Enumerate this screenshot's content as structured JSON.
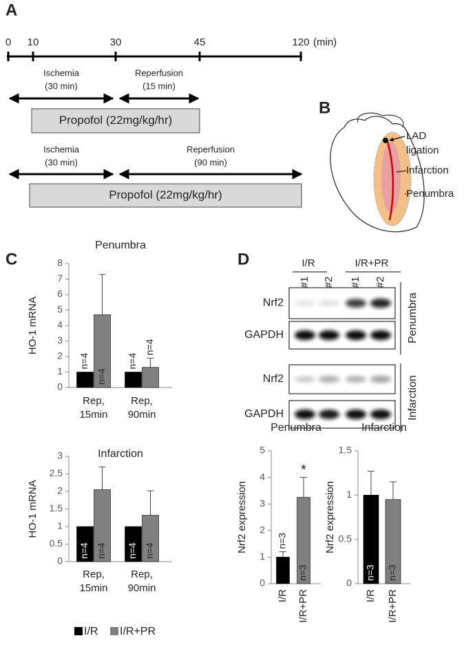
{
  "panel_labels": [
    "A",
    "B",
    "C",
    "D"
  ],
  "timeline": {
    "ticks": [
      "0",
      "10",
      "30",
      "45",
      "120"
    ],
    "unit": "(min)",
    "protocols": [
      {
        "phases": [
          {
            "label": "Ischemia",
            "duration": "(30 min)"
          },
          {
            "label": "Reperfusion",
            "duration": "(15 min)"
          }
        ],
        "drug": "Propofol (22mg/kg/hr)"
      },
      {
        "phases": [
          {
            "label": "Ischemia",
            "duration": "(30 min)"
          },
          {
            "label": "Reperfusion",
            "duration": "(90 min)"
          }
        ],
        "drug": "Propofol (22mg/kg/hr)"
      }
    ]
  },
  "diagram": {
    "labels": [
      [
        "LAD",
        "ligation"
      ],
      [
        "Infarction"
      ],
      [
        "Penumbra"
      ]
    ]
  },
  "blot": {
    "groups": [
      "I/R",
      "I/R+PR"
    ],
    "lanes": [
      "#1",
      "#2",
      "#1",
      "#2"
    ],
    "rows": [
      "Nrf2",
      "GAPDH",
      "Nrf2",
      "GAPDH"
    ],
    "regions": [
      "Penumbra",
      "Infarction"
    ]
  },
  "chart_data": [
    {
      "type": "bar",
      "title": "Penumbra",
      "ylabel": "HO-1 mRNA",
      "categories": [
        "Rep, 15min",
        "Rep, 90min"
      ],
      "series": [
        {
          "name": "I/R",
          "color": "#000000",
          "values": [
            1,
            1
          ],
          "n_labels": [
            "n=4",
            "n=4"
          ]
        },
        {
          "name": "I/R+PR",
          "color": "#808080",
          "values": [
            4.7,
            1.3
          ],
          "errors": [
            2.6,
            0.6
          ],
          "n_labels": [
            "n=4",
            "n=4"
          ]
        }
      ],
      "ylim": [
        0,
        8
      ],
      "yticks": [
        0,
        1,
        2,
        3,
        4,
        5,
        6,
        7,
        8
      ]
    },
    {
      "type": "bar",
      "title": "Infarction",
      "ylabel": "HO-1 mRNA",
      "categories": [
        "Rep, 15min",
        "Rep, 90min"
      ],
      "series": [
        {
          "color": "#000000",
          "values": [
            1,
            1
          ],
          "n_labels": [
            "n=4",
            "n=4"
          ]
        },
        {
          "color": "#808080",
          "values": [
            2.05,
            1.32
          ],
          "errors": [
            0.65,
            0.7
          ],
          "n_labels": [
            "n=4",
            "n=4"
          ]
        }
      ],
      "ylim": [
        0,
        3
      ],
      "yticks": [
        0,
        0.5,
        1,
        1.5,
        2,
        2.5,
        3
      ]
    },
    {
      "type": "bar",
      "title": "Penumbra",
      "ylabel": "Nrf2 expression",
      "categories": [
        "I/R",
        "I/R+PR"
      ],
      "values": [
        1,
        3.25
      ],
      "errors": [
        0.2,
        0.75
      ],
      "colors": [
        "#000000",
        "#808080"
      ],
      "n_labels": [
        "n=3",
        "n=3"
      ],
      "significance_marks": [
        null,
        "*"
      ],
      "ylim": [
        0,
        5
      ],
      "yticks": [
        0,
        1,
        2,
        3,
        4,
        5
      ]
    },
    {
      "type": "bar",
      "title": "Infarction",
      "ylabel": "Nrf2 expression",
      "categories": [
        "I/R",
        "I/R+PR"
      ],
      "values": [
        1,
        0.95
      ],
      "errors": [
        0.27,
        0.2
      ],
      "colors": [
        "#000000",
        "#808080"
      ],
      "n_labels": [
        "n=3",
        "n=3"
      ],
      "ylim": [
        0,
        1.5
      ],
      "yticks": [
        0,
        0.5,
        1,
        1.5
      ]
    }
  ]
}
